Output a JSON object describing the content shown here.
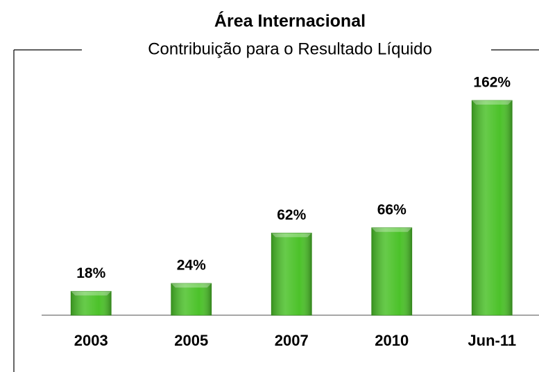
{
  "chart_data": {
    "type": "bar",
    "title": "Área Internacional",
    "subtitle": "Contribuição para o Resultado Líquido",
    "categories": [
      "2003",
      "2005",
      "2007",
      "2010",
      "Jun-11"
    ],
    "values": [
      18,
      24,
      62,
      66,
      162
    ],
    "value_labels": [
      "18%",
      "24%",
      "62%",
      "66%",
      "162%"
    ],
    "color": "#4cc22a"
  }
}
